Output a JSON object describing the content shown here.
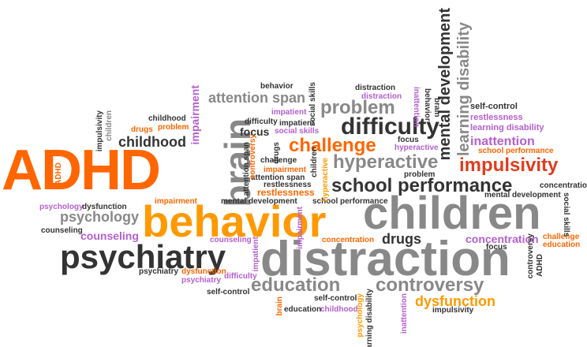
{
  "palette": {
    "dark": "#333333",
    "gray": "#888888",
    "orange": "#ff6600",
    "amber": "#ff9900",
    "violet": "#b45fcf",
    "red": "#e03c1e"
  },
  "words": {
    "adhd_large": "ADHD",
    "behavior_large": "behavior",
    "children_large": "children",
    "distraction_large": "distraction",
    "psychiatry": "psychiatry",
    "brain": "brain",
    "difficulty": "difficulty",
    "problem": "problem",
    "challenge": "challenge",
    "hyperactive": "hyperactive",
    "impulsivity": "impulsivity",
    "school_performance": "school performance",
    "attention_span": "attention span",
    "childhood": "childhood",
    "psychology": "psychology",
    "counseling": "counseling",
    "education": "education",
    "controversy": "controversy",
    "dysfunction": "dysfunction",
    "drugs": "drugs",
    "concentration": "concentration",
    "mental_development": "mental development",
    "learning_disability": "learning disability",
    "inattention": "inattention",
    "restlessness": "restlessness",
    "impairment": "impairment",
    "self_control": "self-control",
    "focus": "focus",
    "behavior_small": "behavior",
    "distraction_small": "distraction",
    "social_skills": "social skills",
    "impatient": "impatient",
    "adhd_small": "ADHD",
    "school_performance_small": "school performance",
    "mental_development_small": "mental development",
    "impulsivity_small": "impulsivity",
    "psychiatry_small": "psychiatry",
    "childhood_small": "childhood",
    "concentration_small": "concentration"
  }
}
